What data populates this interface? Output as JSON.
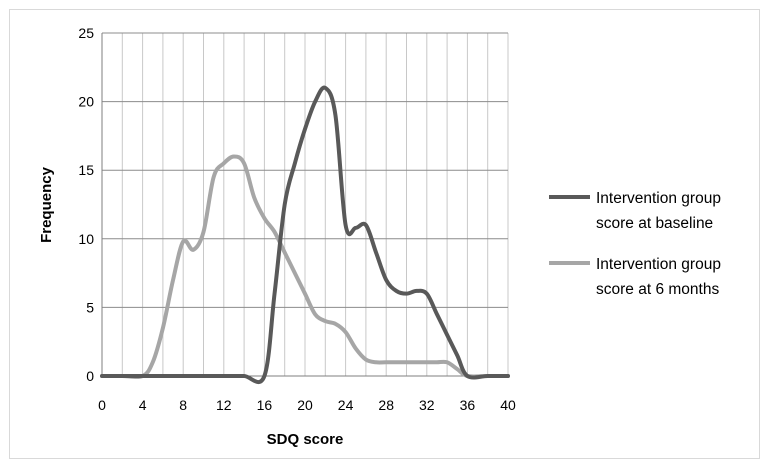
{
  "chart_data": {
    "type": "line",
    "title": "",
    "xlabel": "SDQ score",
    "ylabel": "Frequency",
    "xlim": [
      0,
      40
    ],
    "ylim": [
      0,
      25
    ],
    "x_ticks": [
      0,
      4,
      8,
      12,
      16,
      20,
      24,
      28,
      32,
      36,
      40
    ],
    "y_ticks": [
      0,
      5,
      10,
      15,
      20,
      25
    ],
    "grid": true,
    "legend_position": "right",
    "series": [
      {
        "name_lines": [
          "Intervention group",
          "score at baseline"
        ],
        "color": "#595959",
        "x": [
          0,
          2,
          4,
          6,
          8,
          10,
          12,
          14,
          16,
          17,
          18,
          19,
          20,
          21,
          22,
          23,
          24,
          25,
          26,
          27,
          28,
          29,
          30,
          31,
          32,
          33,
          34,
          35,
          36,
          38,
          40
        ],
        "y": [
          0,
          0,
          0,
          0,
          0,
          0,
          0,
          0,
          0,
          6,
          12.5,
          15.5,
          18,
          20,
          21,
          19,
          11,
          10.8,
          11,
          9,
          7,
          6.2,
          6,
          6.2,
          6,
          4.5,
          3,
          1.5,
          0,
          0,
          0
        ]
      },
      {
        "name_lines": [
          "Intervention group",
          "score at 6 months"
        ],
        "color": "#a6a6a6",
        "x": [
          0,
          2,
          4,
          5,
          6,
          7,
          8,
          9,
          10,
          11,
          12,
          13,
          14,
          15,
          16,
          17,
          18,
          19,
          20,
          21,
          22,
          23,
          24,
          25,
          26,
          27,
          28,
          29,
          30,
          31,
          32,
          33,
          34,
          35,
          36,
          38,
          40
        ],
        "y": [
          0,
          0,
          0,
          1,
          3.5,
          7,
          9.8,
          9.2,
          10.5,
          14.5,
          15.5,
          16,
          15.5,
          13,
          11.5,
          10.5,
          9,
          7.5,
          6,
          4.5,
          4,
          3.8,
          3.2,
          2,
          1.2,
          1,
          1,
          1,
          1,
          1,
          1,
          1,
          1,
          0.5,
          0,
          0,
          0
        ]
      }
    ]
  }
}
